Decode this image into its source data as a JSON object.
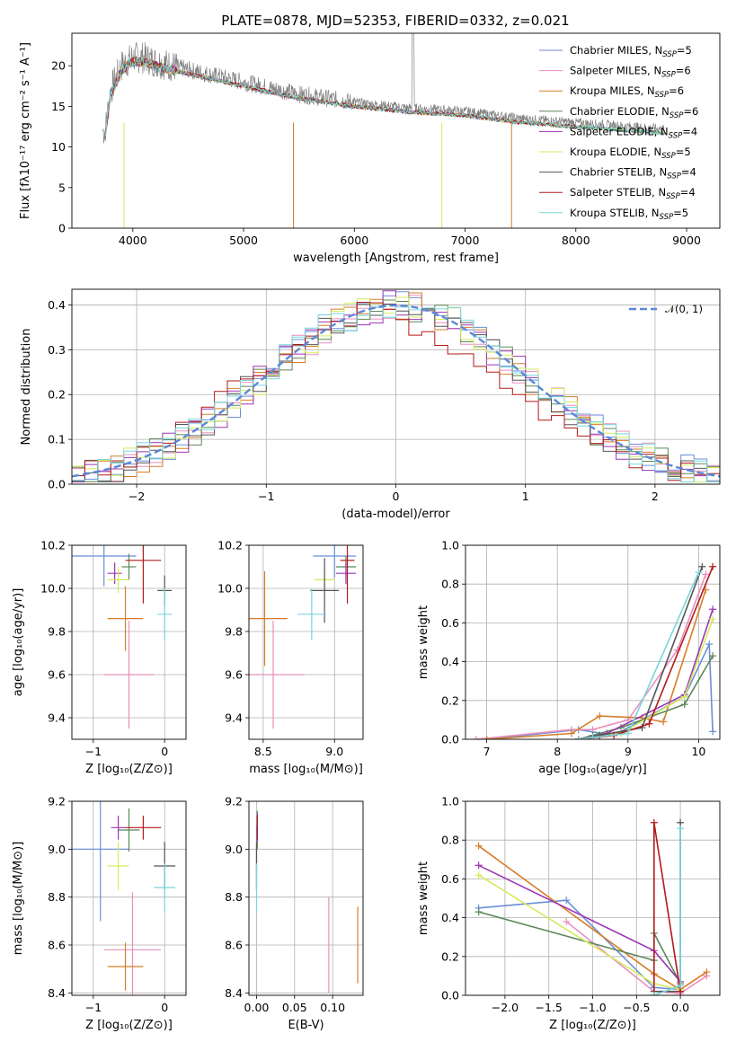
{
  "colors": [
    "#6b8ed8",
    "#e88fbf",
    "#d67e2a",
    "#5c8858",
    "#9b36b4",
    "#d4ea5c",
    "#555555",
    "#b21a1a",
    "#78d6dc"
  ],
  "chart_data": [
    {
      "id": "spectrum",
      "type": "line",
      "title": "PLATE=0878, MJD=52353, FIBERID=0332, z=0.021",
      "xlabel": "wavelength [Angstrom, rest frame]",
      "ylabel": "Flux [fλ10⁻¹⁷ erg cm⁻² s⁻¹ A⁻¹]",
      "xlim": [
        3450,
        9300
      ],
      "ylim": [
        0,
        24
      ],
      "xticks": [
        "4000",
        "5000",
        "6000",
        "7000",
        "8000",
        "9000"
      ],
      "yticks": [
        "0",
        "5",
        "10",
        "15",
        "20"
      ],
      "data_x": [
        3750,
        3800,
        3900,
        4000,
        4100,
        4200,
        4500,
        5000,
        5500,
        6000,
        6500,
        7000,
        7500,
        8000,
        8500,
        9000
      ],
      "data_y": [
        12,
        17,
        20,
        21,
        21,
        20.5,
        19.5,
        18,
        16.5,
        15.5,
        14.8,
        14.4,
        13.5,
        13,
        12.5,
        12
      ],
      "legend": [
        {
          "label": "Chabrier MILES, N",
          "sub": "SSP",
          "suffix": "=5"
        },
        {
          "label": "Salpeter MILES, N",
          "sub": "SSP",
          "suffix": "=6"
        },
        {
          "label": "Kroupa MILES, N",
          "sub": "SSP",
          "suffix": "=6"
        },
        {
          "label": "Chabrier ELODIE, N",
          "sub": "SSP",
          "suffix": "=6"
        },
        {
          "label": "Salpeter ELODIE, N",
          "sub": "SSP",
          "suffix": "=4"
        },
        {
          "label": "Kroupa ELODIE, N",
          "sub": "SSP",
          "suffix": "=5"
        },
        {
          "label": "Chabrier STELIB, N",
          "sub": "SSP",
          "suffix": "=4"
        },
        {
          "label": "Salpeter STELIB, N",
          "sub": "SSP",
          "suffix": "=4"
        },
        {
          "label": "Kroupa STELIB, N",
          "sub": "SSP",
          "suffix": "=5"
        }
      ],
      "legend_position": "upper right"
    },
    {
      "id": "residuals",
      "type": "line",
      "xlabel": "(data-model)/error",
      "ylabel": "Normed distribution",
      "xlim": [
        -2.5,
        2.5
      ],
      "ylim": [
        0,
        0.435
      ],
      "xticks": [
        "−2",
        "−1",
        "0",
        "1",
        "2"
      ],
      "yticks": [
        "0.0",
        "0.1",
        "0.2",
        "0.3",
        "0.4"
      ],
      "grid": true,
      "legend": "𝒩(0, 1)",
      "legend_position": "upper right"
    },
    {
      "id": "age_vs_Z",
      "type": "scatter",
      "xlabel": "Z [log₁₀(Z/Z⊙)]",
      "ylabel": "age  [log₁₀(age/yr)]",
      "xlim": [
        -1.3,
        0.3
      ],
      "ylim": [
        9.3,
        10.2
      ],
      "xticks": [
        "−1",
        "0"
      ],
      "yticks": [
        "9.4",
        "9.6",
        "9.8",
        "10.0",
        "10.2"
      ],
      "grid": true,
      "points": [
        {
          "x": -0.85,
          "y": 10.15,
          "xe": 0.45,
          "ye": 0.14
        },
        {
          "x": -0.5,
          "y": 9.6,
          "xe": 0.35,
          "ye": 0.25
        },
        {
          "x": -0.55,
          "y": 9.86,
          "xe": 0.25,
          "ye": 0.15
        },
        {
          "x": -0.5,
          "y": 10.1,
          "xe": 0.1,
          "ye": 0.06
        },
        {
          "x": -0.7,
          "y": 10.07,
          "xe": 0.1,
          "ye": 0.05
        },
        {
          "x": -0.65,
          "y": 10.04,
          "xe": 0.15,
          "ye": 0.06
        },
        {
          "x": 0.0,
          "y": 9.99,
          "xe": 0.1,
          "ye": 0.07
        },
        {
          "x": -0.3,
          "y": 10.13,
          "xe": 0.25,
          "ye": 0.2
        },
        {
          "x": 0.0,
          "y": 9.88,
          "xe": 0.1,
          "ye": 0.12
        }
      ]
    },
    {
      "id": "age_vs_mass",
      "type": "scatter",
      "xlabel": "mass [log₁₀(M/M⊙)]",
      "ylabel": "",
      "xlim": [
        8.4,
        9.2
      ],
      "ylim": [
        9.3,
        10.2
      ],
      "xticks": [
        "8.5",
        "9.0"
      ],
      "yticks": [
        "9.4",
        "9.6",
        "9.8",
        "10.0",
        "10.2"
      ],
      "grid": true,
      "points": [
        {
          "x": 9.0,
          "y": 10.15,
          "xe": 0.15,
          "ye": 0.1
        },
        {
          "x": 8.57,
          "y": 9.6,
          "xe": 0.22,
          "ye": 0.25
        },
        {
          "x": 8.51,
          "y": 9.86,
          "xe": 0.16,
          "ye": 0.22
        },
        {
          "x": 9.08,
          "y": 10.1,
          "xe": 0.07,
          "ye": 0.05
        },
        {
          "x": 9.08,
          "y": 10.07,
          "xe": 0.07,
          "ye": 0.05
        },
        {
          "x": 8.93,
          "y": 10.04,
          "xe": 0.07,
          "ye": 0.05
        },
        {
          "x": 8.93,
          "y": 9.99,
          "xe": 0.1,
          "ye": 0.15
        },
        {
          "x": 9.09,
          "y": 10.13,
          "xe": 0.05,
          "ye": 0.2
        },
        {
          "x": 8.84,
          "y": 9.88,
          "xe": 0.1,
          "ye": 0.12
        }
      ]
    },
    {
      "id": "mass_weight_vs_age",
      "type": "line",
      "xlabel": "age  [log₁₀(age/yr)]",
      "ylabel": "mass weight",
      "xlim": [
        6.7,
        10.3
      ],
      "ylim": [
        0,
        1
      ],
      "xticks": [
        "7",
        "8",
        "9",
        "10"
      ],
      "yticks": [
        "0.0",
        "0.2",
        "0.4",
        "0.6",
        "0.8",
        "1.0"
      ],
      "grid": true,
      "series": [
        {
          "x": [
            7.0,
            8.3,
            8.8,
            9.8,
            10.15,
            10.2
          ],
          "y": [
            0.0,
            0.05,
            0.02,
            0.22,
            0.49,
            0.04
          ]
        },
        {
          "x": [
            6.85,
            8.2,
            8.5,
            9.0,
            9.7,
            10.1
          ],
          "y": [
            0.0,
            0.05,
            0.05,
            0.1,
            0.46,
            0.85
          ]
        },
        {
          "x": [
            7.0,
            8.2,
            8.6,
            9.2,
            9.5,
            10.1
          ],
          "y": [
            0.0,
            0.03,
            0.12,
            0.11,
            0.09,
            0.77
          ]
        },
        {
          "x": [
            8.3,
            8.5,
            8.9,
            9.8,
            10.2
          ],
          "y": [
            0.0,
            0.02,
            0.06,
            0.18,
            0.43
          ]
        },
        {
          "x": [
            8.3,
            8.7,
            9.8,
            10.2
          ],
          "y": [
            0.0,
            0.03,
            0.23,
            0.67
          ]
        },
        {
          "x": [
            8.3,
            8.9,
            9.8,
            10.2
          ],
          "y": [
            0.0,
            0.03,
            0.22,
            0.62
          ]
        },
        {
          "x": [
            8.3,
            8.6,
            9.2,
            10.05
          ],
          "y": [
            0.0,
            0.02,
            0.06,
            0.89
          ]
        },
        {
          "x": [
            8.3,
            8.8,
            9.3,
            10.2
          ],
          "y": [
            0.0,
            0.02,
            0.08,
            0.89
          ]
        },
        {
          "x": [
            8.3,
            8.5,
            9.0,
            10.0
          ],
          "y": [
            0.0,
            0.01,
            0.03,
            0.86
          ]
        }
      ]
    },
    {
      "id": "mass_vs_Z",
      "type": "scatter",
      "xlabel": "Z [log₁₀(Z/Z⊙)]",
      "ylabel": "mass [log₁₀(M/M⊙)]",
      "xlim": [
        -1.3,
        0.3
      ],
      "ylim": [
        8.39,
        9.2
      ],
      "xticks": [
        "−1",
        "0"
      ],
      "yticks": [
        "8.4",
        "8.6",
        "8.8",
        "9.0",
        "9.2"
      ],
      "grid": true,
      "points": [
        {
          "x": -0.9,
          "y": 9.0,
          "xe": 0.4,
          "ye": 0.3
        },
        {
          "x": -0.45,
          "y": 8.58,
          "xe": 0.4,
          "ye": 0.24
        },
        {
          "x": -0.55,
          "y": 8.51,
          "xe": 0.25,
          "ye": 0.1
        },
        {
          "x": -0.5,
          "y": 9.08,
          "xe": 0.15,
          "ye": 0.09
        },
        {
          "x": -0.65,
          "y": 9.09,
          "xe": 0.1,
          "ye": 0.05
        },
        {
          "x": -0.65,
          "y": 8.93,
          "xe": 0.15,
          "ye": 0.1
        },
        {
          "x": 0.0,
          "y": 8.93,
          "xe": 0.15,
          "ye": 0.1
        },
        {
          "x": -0.3,
          "y": 9.09,
          "xe": 0.25,
          "ye": 0.05
        },
        {
          "x": 0.0,
          "y": 8.84,
          "xe": 0.15,
          "ye": 0.1
        }
      ]
    },
    {
      "id": "mass_vs_ebv",
      "type": "scatter",
      "xlabel": "E(B-V)",
      "ylabel": "",
      "xlim": [
        -0.01,
        0.14
      ],
      "ylim": [
        8.39,
        9.2
      ],
      "xticks": [
        "0.00",
        "0.05",
        "0.10"
      ],
      "yticks": [
        "8.4",
        "8.6",
        "8.8",
        "9.0",
        "9.2"
      ],
      "grid": true,
      "points": [
        {
          "x": 0.0,
          "y": 9.0,
          "xe": 0,
          "ye": 0.1
        },
        {
          "x": 0.095,
          "y": 8.6,
          "xe": 0,
          "ye": 0.2
        },
        {
          "x": 0.133,
          "y": 8.6,
          "xe": 0,
          "ye": 0.16
        },
        {
          "x": 0.001,
          "y": 9.08,
          "xe": 0,
          "ye": 0.08
        },
        {
          "x": 0.001,
          "y": 9.09,
          "xe": 0,
          "ye": 0.06
        },
        {
          "x": 0.0,
          "y": 8.93,
          "xe": 0,
          "ye": 0.1
        },
        {
          "x": 0.0,
          "y": 8.93,
          "xe": 0,
          "ye": 0.1
        },
        {
          "x": 0.001,
          "y": 9.09,
          "xe": 0,
          "ye": 0.05
        },
        {
          "x": 0.0,
          "y": 8.84,
          "xe": 0,
          "ye": 0.1
        }
      ]
    },
    {
      "id": "mass_weight_vs_Z",
      "type": "line",
      "xlabel": "Z [log₁₀(Z/Z⊙)]",
      "ylabel": "mass weight",
      "xlim": [
        -2.45,
        0.45
      ],
      "ylim": [
        0,
        1
      ],
      "xticks": [
        "−2.0",
        "−1.5",
        "−1.0",
        "−0.5",
        "0.0"
      ],
      "yticks": [
        "0.0",
        "0.2",
        "0.4",
        "0.6",
        "0.8",
        "1.0"
      ],
      "grid": true,
      "series": [
        {
          "x": [
            -2.3,
            -1.3,
            -0.3,
            0.0
          ],
          "y": [
            0.45,
            0.49,
            0.04,
            0.03
          ]
        },
        {
          "x": [
            -1.3,
            -0.3,
            0.0,
            0.3
          ],
          "y": [
            0.38,
            0.02,
            0.01,
            0.1
          ]
        },
        {
          "x": [
            -2.3,
            -0.3,
            0.0,
            0.3
          ],
          "y": [
            0.77,
            0.11,
            0.03,
            0.12
          ]
        },
        {
          "x": [
            -2.3,
            -0.3,
            -0.3,
            0.0
          ],
          "y": [
            0.43,
            0.18,
            0.32,
            0.06
          ]
        },
        {
          "x": [
            -2.3,
            -0.3,
            0.0
          ],
          "y": [
            0.67,
            0.23,
            0.07
          ]
        },
        {
          "x": [
            -2.3,
            -0.3,
            0.0
          ],
          "y": [
            0.62,
            0.06,
            0.03
          ]
        },
        {
          "x": [
            -0.3,
            0.0,
            0.0
          ],
          "y": [
            0.02,
            0.02,
            0.89
          ]
        },
        {
          "x": [
            -0.3,
            -0.3,
            0.0
          ],
          "y": [
            0.0,
            0.89,
            0.02
          ]
        },
        {
          "x": [
            -0.3,
            0.0,
            0.0
          ],
          "y": [
            0.0,
            0.05,
            0.86
          ]
        }
      ]
    }
  ]
}
